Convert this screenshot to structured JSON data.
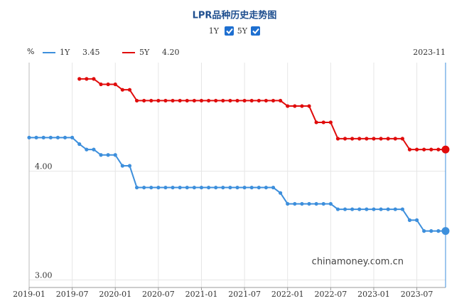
{
  "chart_data": {
    "type": "line",
    "title": "LPR品种历史走势图",
    "unit": "%",
    "latest_date": "2023-11",
    "watermark": "chinamoney.com.cn",
    "categories": [
      "2019-01",
      null,
      null,
      null,
      null,
      null,
      "2019-07",
      null,
      null,
      null,
      null,
      null,
      "2020-01",
      null,
      null,
      null,
      null,
      null,
      "2020-07",
      null,
      null,
      null,
      null,
      null,
      "2021-01",
      null,
      null,
      null,
      null,
      null,
      "2021-07",
      null,
      null,
      null,
      null,
      null,
      "2022-01",
      null,
      null,
      null,
      null,
      null,
      "2022-07",
      null,
      null,
      null,
      null,
      null,
      "2023-01",
      null,
      null,
      null,
      null,
      null,
      "2023-07",
      null,
      null,
      null,
      null
    ],
    "series": [
      {
        "name": "1Y",
        "color": "#3d8fdc",
        "latest_label": "3.45",
        "values": [
          4.31,
          4.31,
          4.31,
          4.31,
          4.31,
          4.31,
          4.31,
          4.25,
          4.2,
          4.2,
          4.15,
          4.15,
          4.15,
          4.05,
          4.05,
          3.85,
          3.85,
          3.85,
          3.85,
          3.85,
          3.85,
          3.85,
          3.85,
          3.85,
          3.85,
          3.85,
          3.85,
          3.85,
          3.85,
          3.85,
          3.85,
          3.85,
          3.85,
          3.85,
          3.85,
          3.8,
          3.7,
          3.7,
          3.7,
          3.7,
          3.7,
          3.7,
          3.7,
          3.65,
          3.65,
          3.65,
          3.65,
          3.65,
          3.65,
          3.65,
          3.65,
          3.65,
          3.65,
          3.55,
          3.55,
          3.45,
          3.45,
          3.45,
          3.45
        ]
      },
      {
        "name": "5Y",
        "color": "#e00c0c",
        "latest_label": "4.20",
        "values": [
          null,
          null,
          null,
          null,
          null,
          null,
          null,
          4.85,
          4.85,
          4.85,
          4.8,
          4.8,
          4.8,
          4.75,
          4.75,
          4.65,
          4.65,
          4.65,
          4.65,
          4.65,
          4.65,
          4.65,
          4.65,
          4.65,
          4.65,
          4.65,
          4.65,
          4.65,
          4.65,
          4.65,
          4.65,
          4.65,
          4.65,
          4.65,
          4.65,
          4.65,
          4.6,
          4.6,
          4.6,
          4.6,
          4.45,
          4.45,
          4.45,
          4.3,
          4.3,
          4.3,
          4.3,
          4.3,
          4.3,
          4.3,
          4.3,
          4.3,
          4.3,
          4.2,
          4.2,
          4.2,
          4.2,
          4.2,
          4.2
        ]
      }
    ],
    "ylim": [
      2.93,
      5.0
    ],
    "yticks": [
      {
        "value": 3,
        "label": "3.00"
      },
      {
        "value": 4,
        "label": "4.00"
      }
    ],
    "grid": true
  }
}
